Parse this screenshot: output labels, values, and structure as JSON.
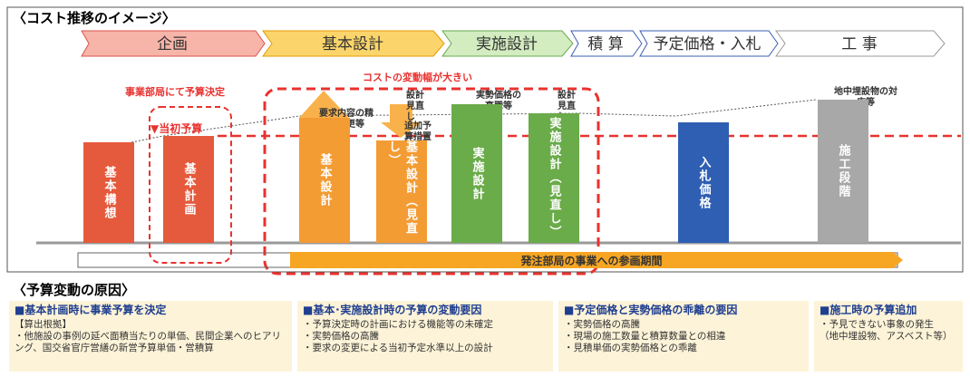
{
  "section1_title": "〈コスト推移のイメージ〉",
  "phases": [
    "企画",
    "基本設計",
    "実施設計",
    "積 算",
    "予定価格・入札",
    "工 事"
  ],
  "annotations": {
    "budget_decided": "事業部局にて予算決定",
    "variation": "コストの変動幅が大きい",
    "initial_budget": "▼当初予算",
    "review": "要求内容の精査・変更等",
    "design_review1": "設計見直し",
    "additional": "追加予算措置",
    "price_rise": "実勢価格の高騰等",
    "design_review2": "設計見直し",
    "underground": "地中埋設物の対応等"
  },
  "bars": [
    "基本構想",
    "基本計画",
    "基本設計",
    "基本設計（見直し）",
    "実施設計",
    "実施設計（見直し）",
    "入札価格",
    "施工段階"
  ],
  "participation": "発注部局の事業への参画期間",
  "section2_title": "〈予算変動の原因〉",
  "causes": [
    {
      "heading": "■基本計画時に事業予算を決定",
      "items": [
        "【算出根拠】",
        "・他施設の事例の延べ面積当たりの単価、民間企業へのヒアリング、国交省官庁営繕の新営予算単価・営積算"
      ]
    },
    {
      "heading": "■基本･実施設計時の予算の変動要因",
      "items": [
        "・予算決定時の計画における機能等の未確定",
        "・実勢価格の高騰",
        "・要求の変更による当初予定水準以上の設計"
      ]
    },
    {
      "heading": "■予定価格と実勢価格の乖離の要因",
      "items": [
        "・実勢価格の高騰",
        "・現場の施工数量と積算数量との相違",
        "・見積単価の実勢価格との乖離"
      ]
    },
    {
      "heading": "■施工時の予算追加",
      "items": [
        "・予見できない事象の発生",
        "（地中埋設物、アスベスト等）"
      ]
    }
  ]
}
